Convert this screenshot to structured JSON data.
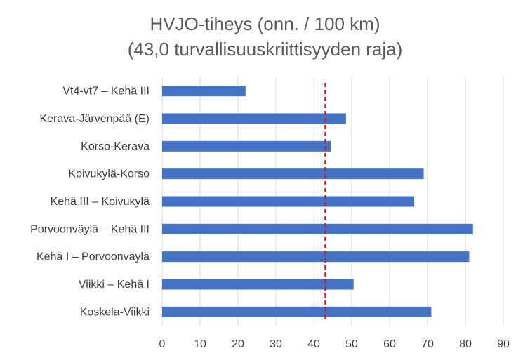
{
  "chart_data": {
    "type": "bar",
    "orientation": "horizontal",
    "title": "HVJO-tiheys (onn. / 100 km)",
    "subtitle": "(43,0 turvallisuuskriittisyyden raja)",
    "categories": [
      "Vt4-vt7 – Kehä III",
      "Kerava-Järvenpää (E)",
      "Korso-Kerava",
      "Koivukylä-Korso",
      "Kehä III – Koivukylä",
      "Porvoonväylä – Kehä III",
      "Kehä I – Porvoonväylä",
      "Viikki – Kehä I",
      "Koskela-Viikki"
    ],
    "values": [
      22,
      48.5,
      44.5,
      69,
      66.5,
      82,
      81,
      50.5,
      71
    ],
    "xlim": [
      0,
      90
    ],
    "xticks": [
      0,
      10,
      20,
      30,
      40,
      50,
      60,
      70,
      80,
      90
    ],
    "threshold": 43,
    "grid": true,
    "legend": "none",
    "bar_color": "#4472c4",
    "threshold_color": "#e31a1c"
  }
}
